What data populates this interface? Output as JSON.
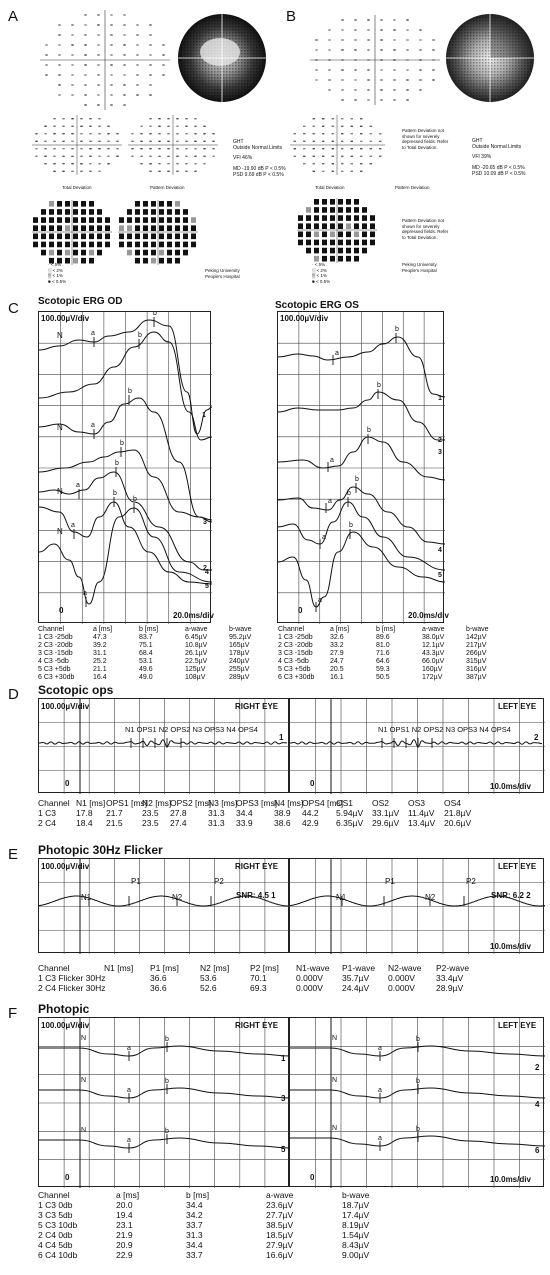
{
  "panels": {
    "A": "A",
    "B": "B",
    "C": "C",
    "D": "D",
    "E": "E",
    "F": "F"
  },
  "visual_field": {
    "A": {
      "ght_title": "GHT",
      "ght_value": "Outside Normal Limits",
      "vfi": "VFI   46%",
      "md": "MD    -19.90 dB  P < 0.5%",
      "psd": "PSD    9.69 dB  P < 0.5%",
      "total_deviation": "Total Deviation",
      "pattern_deviation": "Pattern Deviation",
      "legend": [
        "< 5%",
        "< 2%",
        "< 1%",
        "< 0.5%"
      ],
      "hospital_1": "Peking University",
      "hospital_2": "People's Hospital"
    },
    "B": {
      "ght_title": "GHT",
      "ght_value": "Outside Normal Limits",
      "vfi": "VFI   39%",
      "md": "MD    -20.65 dB  P < 0.5%",
      "psd": "PSD   10.09 dB  P < 0.5%",
      "note_1": [
        "Pattern Deviation not",
        "shown for severely",
        "depressed fields. Refer",
        "to Total Deviation."
      ],
      "note_2": [
        "Pattern Deviation not",
        "shown for severely",
        "depressed fields. Refer",
        "to Total Deviation."
      ],
      "total_deviation": "Total Deviation",
      "pattern_deviation": "Pattern Deviation",
      "legend": [
        "< 5%",
        "< 2%",
        "< 1%",
        "< 0.5%"
      ],
      "hospital_1": "Peking University",
      "hospital_2": "People's Hospital"
    }
  },
  "scotopic_erg": {
    "od_title": "Scotopic ERG OD",
    "os_title": "Scotopic ERG OS",
    "scale_y": "100.00µV/div",
    "scale_x": "20.0ms/div",
    "zero": "0",
    "marker_n": "N",
    "marker_a": "a",
    "marker_b": "b",
    "trace_nums": [
      "1",
      "2",
      "3",
      "4",
      "5",
      "6"
    ],
    "headers": [
      "Channel",
      "a [ms]",
      "b [ms]",
      "a-wave",
      "b-wave"
    ],
    "od_rows": [
      [
        "1 C3 -25db",
        "47.3",
        "83.7",
        "6.45µV",
        "95.2µV"
      ],
      [
        "2 C3 -20db",
        "39.2",
        "75.1",
        "10.8µV",
        "165µV"
      ],
      [
        "3 C3 -15db",
        "31.1",
        "68.4",
        "26.1µV",
        "178µV"
      ],
      [
        "4 C3 -5db",
        "25.2",
        "53.1",
        "22.5µV",
        "240µV"
      ],
      [
        "5 C3 +5db",
        "21.1",
        "49.6",
        "125µV",
        "255µV"
      ],
      [
        "6 C3 +30db",
        "16.4",
        "49.0",
        "108µV",
        "289µV"
      ]
    ],
    "os_rows": [
      [
        "1 C3 -25db",
        "32.6",
        "89.6",
        "38.0µV",
        "142µV"
      ],
      [
        "2 C3 -20db",
        "33.2",
        "81.0",
        "12.1µV",
        "217µV"
      ],
      [
        "3 C3 -15db",
        "27.9",
        "71.6",
        "43.3µV",
        "266µV"
      ],
      [
        "4 C3 -5db",
        "24.7",
        "64.6",
        "66.0µV",
        "315µV"
      ],
      [
        "5 C3 +5db",
        "20.5",
        "59.3",
        "160µV",
        "316µV"
      ],
      [
        "6 C3 +30db",
        "16.1",
        "50.5",
        "172µV",
        "387µV"
      ]
    ]
  },
  "scotopic_ops": {
    "title": "Scotopic ops",
    "scale_y": "100.00µV/div",
    "scale_x": "10.0ms/div",
    "right_eye": "RIGHT EYE",
    "left_eye": "LEFT EYE",
    "zero": "0",
    "trace_right": "1",
    "trace_left": "2",
    "marks": "N1 OPS1 N2 OPS2 N3 OPS3 N4 OPS4",
    "headers": [
      "Channel",
      "N1 [ms]",
      "OPS1 [ms]",
      "N2 [ms]",
      "OPS2 [ms]",
      "N3 [ms]",
      "OPS3 [ms]",
      "N4 [ms]",
      "OPS4 [ms]",
      "OS1",
      "OS2",
      "OS3",
      "OS4"
    ],
    "rows": [
      [
        "1 C3",
        "17.8",
        "21.7",
        "23.5",
        "27.8",
        "31.3",
        "34.4",
        "38.9",
        "44.2",
        "5.94µV",
        "33.1µV",
        "11.4µV",
        "21.8µV"
      ],
      [
        "2 C4",
        "18.4",
        "21.5",
        "23.5",
        "27.4",
        "31.3",
        "33.9",
        "38.6",
        "42.9",
        "6.35µV",
        "29.6µV",
        "13.4µV",
        "20.6µV"
      ]
    ]
  },
  "photopic_flicker": {
    "title": "Photopic 30Hz Flicker",
    "scale_y": "100.00µV/div",
    "scale_x": "10.0ms/div",
    "right_eye": "RIGHT EYE",
    "left_eye": "LEFT EYE",
    "snr_right": "SNR: 4.5 1",
    "snr_left": "SNR: 6.2 2",
    "n1": "N1",
    "p1": "P1",
    "n2": "N2",
    "p2": "P2",
    "headers": [
      "Channel",
      "N1 [ms]",
      "P1 [ms]",
      "N2 [ms]",
      "P2 [ms]",
      "N1-wave",
      "P1-wave",
      "N2-wave",
      "P2-wave"
    ],
    "rows": [
      [
        "1 C3 Flicker 30Hz",
        "",
        "36.6",
        "53.6",
        "70.1",
        "0.000V",
        "35.7µV",
        "0.000V",
        "33.4µV"
      ],
      [
        "2 C4 Flicker 30Hz",
        "",
        "36.6",
        "52.6",
        "69.3",
        "0.000V",
        "24.4µV",
        "0.000V",
        "28.9µV"
      ]
    ]
  },
  "photopic": {
    "title": "Photopic",
    "scale_y": "100.00µV/div",
    "scale_x": "10.0ms/div",
    "right_eye": "RIGHT EYE",
    "left_eye": "LEFT EYE",
    "zero": "0",
    "trace_right": [
      "1",
      "3",
      "5"
    ],
    "trace_left": [
      "2",
      "4",
      "6"
    ],
    "headers": [
      "Channel",
      "a [ms]",
      "b [ms]",
      "a-wave",
      "b-wave"
    ],
    "rows": [
      [
        "1 C3 0db",
        "20.0",
        "34.4",
        "23.6µV",
        "18.7µV"
      ],
      [
        "3 C3 5db",
        "19.4",
        "34.2",
        "27.7µV",
        "17.4µV"
      ],
      [
        "5 C3 10db",
        "23.1",
        "33.7",
        "38.5µV",
        "8.19µV"
      ],
      [
        "2 C4 0db",
        "21.9",
        "31.3",
        "18.5µV",
        "1.54µV"
      ],
      [
        "4 C4 5db",
        "20.9",
        "34.4",
        "27.9µV",
        "8.43µV"
      ],
      [
        "6 C4 10db",
        "22.9",
        "33.7",
        "16.6µV",
        "9.00µV"
      ]
    ]
  }
}
